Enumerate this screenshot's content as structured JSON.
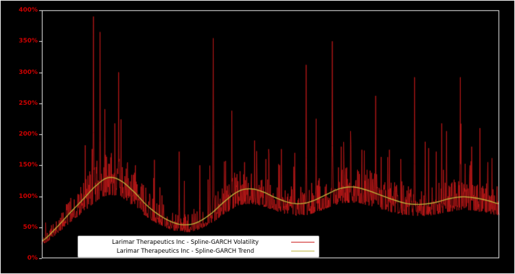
{
  "chart_data": {
    "type": "line",
    "title": "",
    "xlabel": "",
    "ylabel": "",
    "ylim": [
      0,
      400
    ],
    "grid": false,
    "legend_position": "bottom-center",
    "background_color": "#000000",
    "axis_frame_color": "#f4f4f4",
    "tick_label_color": "#cc0000",
    "y_ticks": [
      "0%",
      "50%",
      "100%",
      "150%",
      "200%",
      "250%",
      "300%",
      "350%",
      "400%"
    ],
    "y_tick_values": [
      0,
      50,
      100,
      150,
      200,
      250,
      300,
      350,
      400
    ],
    "series": [
      {
        "name": "Larimar Therapeutics Inc - Spline-GARCH Volatility",
        "color": "#cc1b1b",
        "style": "noisy"
      },
      {
        "name": "Larimar Therapeutics Inc - Spline-GARCH Trend",
        "color": "#bdb33b",
        "style": "smooth"
      }
    ],
    "trend_points": [
      [
        0.0,
        28
      ],
      [
        0.03,
        48
      ],
      [
        0.06,
        72
      ],
      [
        0.09,
        95
      ],
      [
        0.12,
        118
      ],
      [
        0.145,
        130
      ],
      [
        0.17,
        126
      ],
      [
        0.2,
        108
      ],
      [
        0.23,
        85
      ],
      [
        0.26,
        68
      ],
      [
        0.29,
        57
      ],
      [
        0.315,
        54
      ],
      [
        0.34,
        58
      ],
      [
        0.37,
        72
      ],
      [
        0.4,
        92
      ],
      [
        0.43,
        108
      ],
      [
        0.455,
        112
      ],
      [
        0.48,
        108
      ],
      [
        0.51,
        98
      ],
      [
        0.54,
        90
      ],
      [
        0.565,
        88
      ],
      [
        0.59,
        92
      ],
      [
        0.62,
        102
      ],
      [
        0.65,
        112
      ],
      [
        0.68,
        115
      ],
      [
        0.71,
        110
      ],
      [
        0.74,
        102
      ],
      [
        0.77,
        94
      ],
      [
        0.8,
        88
      ],
      [
        0.83,
        87
      ],
      [
        0.86,
        90
      ],
      [
        0.89,
        96
      ],
      [
        0.92,
        99
      ],
      [
        0.95,
        97
      ],
      [
        0.975,
        93
      ],
      [
        1.0,
        88
      ]
    ],
    "volatility_spikes": [
      [
        0.113,
        390
      ],
      [
        0.127,
        365
      ],
      [
        0.168,
        300
      ],
      [
        0.205,
        150
      ],
      [
        0.3,
        172
      ],
      [
        0.345,
        150
      ],
      [
        0.375,
        355
      ],
      [
        0.415,
        238
      ],
      [
        0.443,
        155
      ],
      [
        0.465,
        190
      ],
      [
        0.49,
        160
      ],
      [
        0.52,
        150
      ],
      [
        0.553,
        170
      ],
      [
        0.578,
        312
      ],
      [
        0.6,
        225
      ],
      [
        0.635,
        350
      ],
      [
        0.655,
        180
      ],
      [
        0.675,
        205
      ],
      [
        0.7,
        175
      ],
      [
        0.73,
        262
      ],
      [
        0.76,
        175
      ],
      [
        0.785,
        160
      ],
      [
        0.815,
        292
      ],
      [
        0.838,
        188
      ],
      [
        0.862,
        172
      ],
      [
        0.885,
        205
      ],
      [
        0.915,
        292
      ],
      [
        0.94,
        180
      ],
      [
        0.958,
        210
      ],
      [
        0.975,
        155
      ]
    ],
    "noise": {
      "seed": 1337,
      "base": 0.78,
      "amp": 0.55,
      "burst_prob": 0.04,
      "n_points": 1330,
      "min_value": 22
    }
  },
  "legend": {
    "items": [
      {
        "label": "Larimar Therapeutics Inc - Spline-GARCH Volatility",
        "color": "#cc1b1b"
      },
      {
        "label": "Larimar Therapeutics Inc - Spline-GARCH Trend",
        "color": "#bdb33b"
      }
    ]
  }
}
